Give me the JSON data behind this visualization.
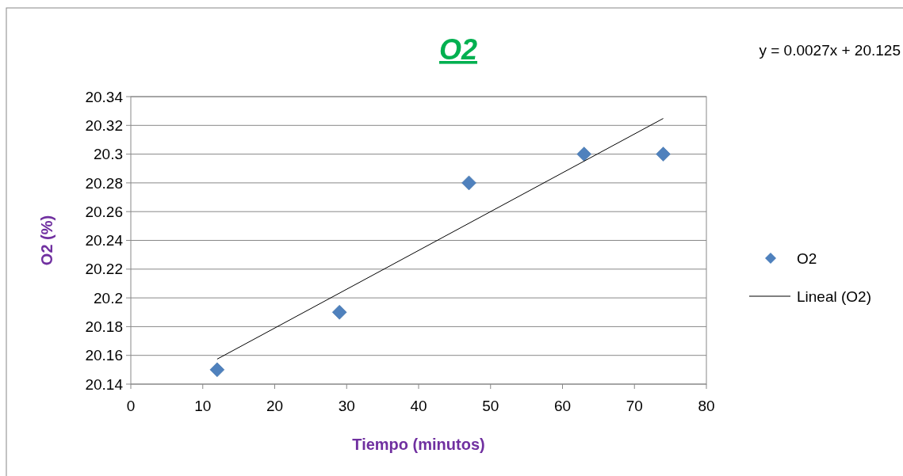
{
  "chart_data": {
    "type": "scatter",
    "title": "O2",
    "xlabel": "Tiempo (minutos)",
    "ylabel": "O2 (%)",
    "annotations": [
      "y = 0.0027x + 20.125"
    ],
    "xlim": [
      0,
      80
    ],
    "xticks": [
      0,
      10,
      20,
      30,
      40,
      50,
      60,
      70,
      80
    ],
    "ylim": [
      20.14,
      20.34
    ],
    "yticks": [
      20.14,
      20.16,
      20.18,
      20.2,
      20.22,
      20.24,
      20.26,
      20.28,
      20.3,
      20.32,
      20.34
    ],
    "grid": "y",
    "legend": "right",
    "marker": "diamond",
    "series": [
      {
        "name": "O2",
        "color": "#4f81bd",
        "x": [
          12,
          29,
          47,
          63,
          74
        ],
        "values": [
          20.15,
          20.19,
          20.28,
          20.3,
          20.3
        ]
      },
      {
        "name": "Lineal (O2)",
        "type": "line",
        "color": "#000000",
        "marker": "none",
        "x": [
          12,
          74
        ],
        "values": [
          20.1574,
          20.3248
        ]
      }
    ]
  }
}
